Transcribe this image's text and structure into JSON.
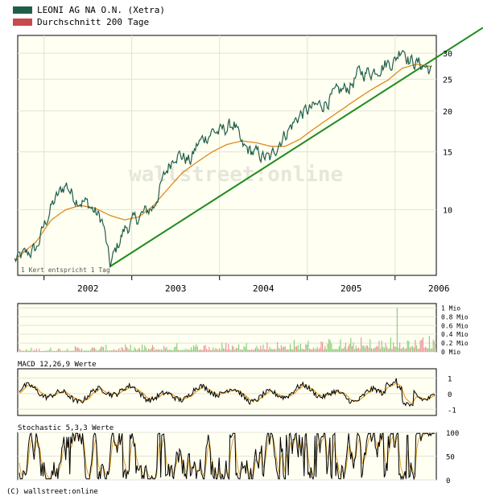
{
  "legend": [
    {
      "label": "LEONI AG NA O.N. (Xetra)",
      "color": "#1f5f4a"
    },
    {
      "label": "Durchschnitt 200 Tage",
      "color": "#c84a4a"
    }
  ],
  "watermark": "wallstreet:online",
  "scale_note": "1 Kert entspricht 1 Tag",
  "copyright": "(C) wallstreet:online",
  "colors": {
    "price": "#1f5f4a",
    "ma200": "#e08a1e",
    "trend": "#1e8c1e",
    "vol_up": "#8fcf7f",
    "vol_down": "#e89a9a",
    "macd": "#000000",
    "macd_signal": "#e0a020",
    "panel_bg": "#fffff2",
    "grid": "#e3e3d4"
  },
  "chart_data": [
    {
      "type": "line",
      "series": [
        {
          "name": "LEONI AG NA O.N. (Xetra)",
          "x": [
            "2001-09",
            "2001-12",
            "2002-02",
            "2002-04",
            "2002-05",
            "2002-07",
            "2002-09",
            "2002-10",
            "2002-12",
            "2003-02",
            "2003-04",
            "2003-06",
            "2003-07",
            "2003-09",
            "2003-10",
            "2003-12",
            "2004-01",
            "2004-03",
            "2004-04",
            "2004-06",
            "2004-08",
            "2004-09",
            "2004-11",
            "2004-12",
            "2005-02",
            "2005-03",
            "2005-05",
            "2005-07",
            "2005-08",
            "2005-10",
            "2005-11",
            "2006-01",
            "2006-02",
            "2006-03",
            "2006-04",
            "2006-05",
            "2006-06"
          ],
          "y": [
            7.0,
            7.6,
            10.2,
            12.0,
            11.0,
            10.4,
            9.2,
            6.7,
            8.7,
            9.5,
            10.2,
            13.5,
            15.0,
            14.0,
            15.8,
            17.4,
            17.2,
            18.3,
            15.5,
            14.8,
            14.2,
            16.0,
            18.2,
            19.5,
            20.5,
            21.0,
            22.5,
            24.0,
            26.0,
            26.5,
            27.5,
            28.5,
            31.8,
            28.5,
            28.0,
            27.5,
            26.5
          ]
        },
        {
          "name": "Durchschnitt 200 Tage",
          "x": [
            "2001-09",
            "2001-12",
            "2002-02",
            "2002-04",
            "2002-06",
            "2002-08",
            "2002-10",
            "2002-12",
            "2003-02",
            "2003-04",
            "2003-06",
            "2003-08",
            "2003-10",
            "2003-12",
            "2004-02",
            "2004-04",
            "2004-06",
            "2004-08",
            "2004-10",
            "2004-12",
            "2005-02",
            "2005-04",
            "2005-06",
            "2005-08",
            "2005-10",
            "2005-12",
            "2006-02",
            "2006-04",
            "2006-06"
          ],
          "y": [
            7.0,
            8.0,
            9.3,
            10.0,
            10.3,
            10.1,
            9.6,
            9.3,
            9.5,
            10.3,
            11.6,
            13.0,
            14.0,
            15.0,
            15.8,
            16.2,
            16.0,
            15.6,
            15.6,
            16.4,
            17.7,
            19.0,
            20.4,
            21.9,
            23.4,
            24.8,
            27.0,
            27.8,
            27.3
          ]
        }
      ],
      "trendline": {
        "x": [
          "2002-10",
          "2006-06"
        ],
        "y": [
          6.7,
          28.5
        ]
      },
      "x_ticks": [
        "2002",
        "2003",
        "2004",
        "2005",
        "2006"
      ],
      "y_ticks": [
        10,
        15,
        20,
        25,
        30
      ],
      "y_scale": "log",
      "ylim": [
        6.3,
        34
      ],
      "grid": true
    },
    {
      "type": "bar",
      "y_ticks": [
        "1 Mio",
        "0.8 Mio",
        "0.6 Mio",
        "0.4 Mio",
        "0.2 Mio",
        "0 Mio"
      ],
      "ylim": [
        0,
        1.1
      ],
      "peak": 1.0
    },
    {
      "type": "line",
      "title": "MACD 12,26,9 Werte",
      "y_ticks": [
        1,
        0,
        -1
      ],
      "ylim": [
        -1.4,
        1.6
      ]
    },
    {
      "type": "line",
      "title": "Stochastic 5,3,3 Werte",
      "y_ticks": [
        100,
        50,
        0
      ],
      "ylim": [
        0,
        100
      ]
    }
  ]
}
